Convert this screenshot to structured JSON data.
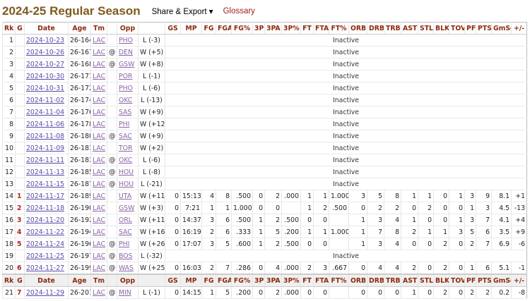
{
  "header": {
    "title": "2024-25 Regular Season",
    "share_export": "Share & Export ▾",
    "glossary": "Glossary"
  },
  "columns": [
    "Rk",
    "G",
    "Date",
    "Age",
    "Tm",
    "",
    "Opp",
    "",
    "GS",
    "MP",
    "FG",
    "FGA",
    "FG%",
    "3P",
    "3PA",
    "3P%",
    "FT",
    "FTA",
    "FT%",
    "ORB",
    "DRB",
    "TRB",
    "AST",
    "STL",
    "BLK",
    "TOV",
    "PF",
    "PTS",
    "GmSc",
    "+/-"
  ],
  "inactive_label": "Inactive",
  "rows": [
    {
      "rk": "1",
      "g": "",
      "date": "2024-10-23",
      "age": "26-164",
      "tm": "LAC",
      "at": "",
      "opp": "PHO",
      "res": "L (-3)",
      "stats": null
    },
    {
      "rk": "2",
      "g": "",
      "date": "2024-10-26",
      "age": "26-167",
      "tm": "LAC",
      "at": "@",
      "opp": "DEN",
      "res": "W (+5)",
      "stats": null
    },
    {
      "rk": "3",
      "g": "",
      "date": "2024-10-27",
      "age": "26-168",
      "tm": "LAC",
      "at": "@",
      "opp": "GSW",
      "res": "W (+8)",
      "stats": null
    },
    {
      "rk": "4",
      "g": "",
      "date": "2024-10-30",
      "age": "26-171",
      "tm": "LAC",
      "at": "",
      "opp": "POR",
      "res": "L (-1)",
      "stats": null
    },
    {
      "rk": "5",
      "g": "",
      "date": "2024-10-31",
      "age": "26-172",
      "tm": "LAC",
      "at": "",
      "opp": "PHO",
      "res": "L (-6)",
      "stats": null
    },
    {
      "rk": "6",
      "g": "",
      "date": "2024-11-02",
      "age": "26-174",
      "tm": "LAC",
      "at": "",
      "opp": "OKC",
      "res": "L (-13)",
      "stats": null
    },
    {
      "rk": "7",
      "g": "",
      "date": "2024-11-04",
      "age": "26-176",
      "tm": "LAC",
      "at": "",
      "opp": "SAS",
      "res": "W (+9)",
      "stats": null
    },
    {
      "rk": "8",
      "g": "",
      "date": "2024-11-06",
      "age": "26-178",
      "tm": "LAC",
      "at": "",
      "opp": "PHI",
      "res": "W (+12)",
      "stats": null
    },
    {
      "rk": "9",
      "g": "",
      "date": "2024-11-08",
      "age": "26-180",
      "tm": "LAC",
      "at": "@",
      "opp": "SAC",
      "res": "W (+9)",
      "stats": null
    },
    {
      "rk": "10",
      "g": "",
      "date": "2024-11-09",
      "age": "26-181",
      "tm": "LAC",
      "at": "",
      "opp": "TOR",
      "res": "W (+2)",
      "stats": null
    },
    {
      "rk": "11",
      "g": "",
      "date": "2024-11-11",
      "age": "26-183",
      "tm": "LAC",
      "at": "@",
      "opp": "OKC",
      "res": "L (-6)",
      "stats": null
    },
    {
      "rk": "12",
      "g": "",
      "date": "2024-11-13",
      "age": "26-185",
      "tm": "LAC",
      "at": "@",
      "opp": "HOU",
      "res": "L (-8)",
      "stats": null
    },
    {
      "rk": "13",
      "g": "",
      "date": "2024-11-15",
      "age": "26-187",
      "tm": "LAC",
      "at": "@",
      "opp": "HOU",
      "res": "L (-21)",
      "stats": null
    },
    {
      "rk": "14",
      "g": "1",
      "date": "2024-11-17",
      "age": "26-189",
      "tm": "LAC",
      "at": "",
      "opp": "UTA",
      "res": "W (+11)",
      "stats": [
        "0",
        "15:13",
        "4",
        "8",
        ".500",
        "0",
        "2",
        ".000",
        "1",
        "1",
        "1.000",
        "3",
        "5",
        "8",
        "1",
        "1",
        "0",
        "1",
        "3",
        "9",
        "8.1",
        "+1"
      ]
    },
    {
      "rk": "15",
      "g": "2",
      "date": "2024-11-18",
      "age": "26-190",
      "tm": "LAC",
      "at": "",
      "opp": "GSW",
      "res": "W (+3)",
      "stats": [
        "0",
        "7:21",
        "1",
        "1",
        "1.000",
        "0",
        "0",
        "",
        "1",
        "2",
        ".500",
        "0",
        "2",
        "2",
        "0",
        "2",
        "0",
        "0",
        "1",
        "3",
        "4.5",
        "-13"
      ]
    },
    {
      "rk": "16",
      "g": "3",
      "date": "2024-11-20",
      "age": "26-192",
      "tm": "LAC",
      "at": "",
      "opp": "ORL",
      "res": "W (+11)",
      "stats": [
        "0",
        "14:37",
        "3",
        "6",
        ".500",
        "1",
        "2",
        ".500",
        "0",
        "0",
        "",
        "1",
        "3",
        "4",
        "1",
        "0",
        "0",
        "1",
        "3",
        "7",
        "4.1",
        "+4"
      ]
    },
    {
      "rk": "17",
      "g": "4",
      "date": "2024-11-22",
      "age": "26-194",
      "tm": "LAC",
      "at": "",
      "opp": "SAC",
      "res": "W (+16)",
      "stats": [
        "0",
        "16:19",
        "2",
        "6",
        ".333",
        "1",
        "5",
        ".200",
        "1",
        "1",
        "1.000",
        "1",
        "7",
        "8",
        "2",
        "1",
        "1",
        "3",
        "5",
        "6",
        "3.5",
        "+9"
      ]
    },
    {
      "rk": "18",
      "g": "5",
      "date": "2024-11-24",
      "age": "26-196",
      "tm": "LAC",
      "at": "@",
      "opp": "PHI",
      "res": "W (+26)",
      "stats": [
        "0",
        "17:07",
        "3",
        "5",
        ".600",
        "1",
        "2",
        ".500",
        "0",
        "0",
        "",
        "1",
        "3",
        "4",
        "0",
        "0",
        "2",
        "0",
        "2",
        "7",
        "6.9",
        "-6"
      ]
    },
    {
      "rk": "19",
      "g": "",
      "date": "2024-11-25",
      "age": "26-197",
      "tm": "LAC",
      "at": "@",
      "opp": "BOS",
      "res": "L (-32)",
      "stats": null
    },
    {
      "rk": "20",
      "g": "6",
      "date": "2024-11-27",
      "age": "26-199",
      "tm": "LAC",
      "at": "@",
      "opp": "WAS",
      "res": "W (+25)",
      "stats": [
        "0",
        "16:03",
        "2",
        "7",
        ".286",
        "0",
        "4",
        ".000",
        "2",
        "3",
        ".667",
        "0",
        "4",
        "4",
        "2",
        "0",
        "2",
        "0",
        "1",
        "6",
        "5.1",
        "-1"
      ]
    },
    {
      "header_repeat": true
    },
    {
      "rk": "21",
      "g": "7",
      "date": "2024-11-29",
      "age": "26-201",
      "tm": "LAC",
      "at": "@",
      "opp": "MIN",
      "res": "L (-1)",
      "stats": [
        "0",
        "14:15",
        "1",
        "5",
        ".200",
        "0",
        "2",
        ".000",
        "0",
        "0",
        "",
        "0",
        "0",
        "0",
        "1",
        "0",
        "2",
        "0",
        "2",
        "2",
        "0.2",
        "-8"
      ]
    }
  ],
  "colors": {
    "title": "#7d5a1c",
    "header_text": "#8e2b10",
    "game_number": "#b22222",
    "link": "#5a4aa8"
  }
}
